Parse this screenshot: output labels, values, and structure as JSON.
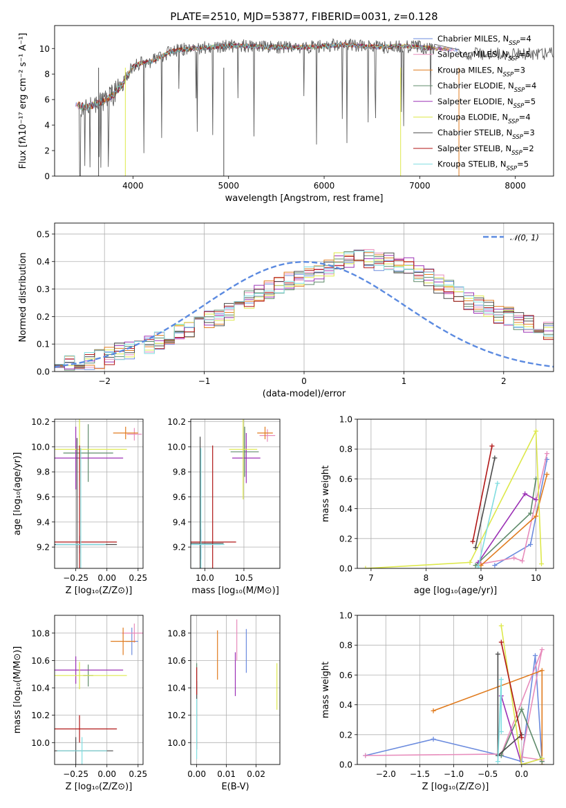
{
  "chart_data": [
    {
      "type": "line",
      "title": "PLATE=2510, MJD=53877, FIBERID=0031, z=0.128",
      "xlabel": "wavelength [Angstrom, rest frame]",
      "ylabel": "Flux [fλ10⁻¹⁷ erg cm⁻² s⁻¹ A⁻¹]",
      "xlim": [
        3180,
        8400
      ],
      "ylim": [
        0,
        11.8
      ],
      "xticks": [
        4000,
        5000,
        6000,
        7000,
        8000
      ],
      "yticks": [
        0,
        2,
        4,
        6,
        8,
        10
      ],
      "legend_position": "top-right",
      "series": [
        {
          "name": "Chabrier MILES, N_SSP=4",
          "color": "#6b8bde"
        },
        {
          "name": "Salpeter MILES, N_SSP=5",
          "color": "#e78bbb"
        },
        {
          "name": "Kroupa MILES, N_SSP=3",
          "color": "#e07b1e"
        },
        {
          "name": "Chabrier ELODIE, N_SSP=4",
          "color": "#5e8a6a"
        },
        {
          "name": "Salpeter ELODIE, N_SSP=5",
          "color": "#9b30b5"
        },
        {
          "name": "Kroupa ELODIE, N_SSP=4",
          "color": "#dde84a"
        },
        {
          "name": "Chabrier STELIB, N_SSP=3",
          "color": "#4a4a4a"
        },
        {
          "name": "Salpeter STELIB, N_SSP=2",
          "color": "#b01515"
        },
        {
          "name": "Kroupa STELIB, N_SSP=5",
          "color": "#7fdde0"
        }
      ],
      "continuum": {
        "x": [
          3400,
          3500,
          3600,
          3700,
          3800,
          3900,
          4000,
          4100,
          4200,
          4300,
          4400,
          4600,
          4800,
          5000,
          5200,
          5400,
          5600,
          5800,
          6000,
          6200,
          6400,
          6600,
          6800,
          7000,
          7200,
          7400
        ],
        "y": [
          5.6,
          5.4,
          5.6,
          5.9,
          6.4,
          7.3,
          8.6,
          8.9,
          9.0,
          9.4,
          9.8,
          10.0,
          10.1,
          10.2,
          10.2,
          10.1,
          10.1,
          10.1,
          10.2,
          10.3,
          10.2,
          10.1,
          10.2,
          10.1,
          10.0,
          9.9
        ]
      }
    },
    {
      "type": "bar",
      "xlabel": "(data-model)/error",
      "ylabel": "Normed distribution",
      "xlim": [
        -2.5,
        2.5
      ],
      "ylim": [
        0,
        0.54
      ],
      "xticks": [
        -2,
        -1,
        0,
        1,
        2
      ],
      "xtick_labels": [
        "−2",
        "−1",
        "0",
        "1",
        "2"
      ],
      "yticks": [
        0.0,
        0.1,
        0.2,
        0.3,
        0.4,
        0.5
      ],
      "ytick_labels": [
        "0.0",
        "0.1",
        "0.2",
        "0.3",
        "0.4",
        "0.5"
      ],
      "legend": "𝒩(0, 1)",
      "bins": {
        "start": -2.5,
        "width": 0.1
      },
      "normal_curve": {
        "mean": 0,
        "sigma": 1,
        "color": "#5b8ae0"
      },
      "histogram_envelope": [
        0.03,
        0.03,
        0.035,
        0.04,
        0.045,
        0.06,
        0.07,
        0.08,
        0.09,
        0.1,
        0.11,
        0.13,
        0.14,
        0.16,
        0.17,
        0.19,
        0.2,
        0.22,
        0.24,
        0.26,
        0.28,
        0.3,
        0.32,
        0.33,
        0.34,
        0.35,
        0.36,
        0.38,
        0.4,
        0.41,
        0.42,
        0.41,
        0.4,
        0.4,
        0.39,
        0.38,
        0.36,
        0.34,
        0.32,
        0.3,
        0.28,
        0.26,
        0.24,
        0.23,
        0.21,
        0.2,
        0.18,
        0.17,
        0.16,
        0.15,
        0.13,
        0.12,
        0.11,
        0.1,
        0.09,
        0.08,
        0.07,
        0.06,
        0.05,
        0.045,
        0.04,
        0.035,
        0.03,
        0.03,
        0.03,
        0.03,
        0.03,
        0.03,
        0.03,
        0.03
      ]
    },
    {
      "type": "scatter",
      "xlabel": "Z [log₁₀(Z/Z⊙)]",
      "ylabel": "age  [log₁₀(age/yr)]",
      "xlim": [
        -0.42,
        0.29
      ],
      "ylim": [
        9.03,
        10.22
      ],
      "xticks": [
        -0.25,
        0.0,
        0.25
      ],
      "xtick_labels": [
        "−0.25",
        "0.00",
        "0.25"
      ],
      "yticks": [
        9.2,
        9.4,
        9.6,
        9.8,
        10.0,
        10.2
      ],
      "ytick_labels": [
        "9.2",
        "9.4",
        "9.6",
        "9.8",
        "10.0",
        "10.2"
      ],
      "points": [
        {
          "x": -0.22,
          "y": 9.22,
          "color": "#6b8bde",
          "xerr": 0.2,
          "yerr": 0.07
        },
        {
          "x": 0.22,
          "y": 10.1,
          "color": "#e78bbb",
          "xerr": 0.06,
          "yerr": 0.05
        },
        {
          "x": 0.15,
          "y": 10.11,
          "color": "#e07b1e",
          "xerr": 0.1,
          "yerr": 0.05
        },
        {
          "x": -0.15,
          "y": 9.95,
          "color": "#5e8a6a",
          "xerr": 0.2,
          "yerr": 0.23
        },
        {
          "x": -0.25,
          "y": 9.91,
          "color": "#9b30b5",
          "xerr": 0.38,
          "yerr": 0.25
        },
        {
          "x": -0.22,
          "y": 9.98,
          "color": "#dde84a",
          "xerr": 0.38,
          "yerr": 0.25
        },
        {
          "x": -0.24,
          "y": 9.22,
          "color": "#4a4a4a",
          "xerr": 0.32,
          "yerr": 0.85
        },
        {
          "x": -0.22,
          "y": 9.24,
          "color": "#b01515",
          "xerr": 0.3,
          "yerr": 0.77
        },
        {
          "x": -0.21,
          "y": 9.22,
          "color": "#7fdde0",
          "xerr": 0.2,
          "yerr": 0.77
        }
      ]
    },
    {
      "type": "scatter",
      "xlabel": "mass [log₁₀(M/M⊙)]",
      "ylabel": "",
      "xlim": [
        9.82,
        10.96
      ],
      "ylim": [
        9.03,
        10.22
      ],
      "xticks": [
        10.0,
        10.5
      ],
      "xtick_labels": [
        "10.0",
        "10.5"
      ],
      "yticks": [
        9.2,
        9.4,
        9.6,
        9.8,
        10.0,
        10.2
      ],
      "ytick_labels": [
        "9.2",
        "9.4",
        "9.6",
        "9.8",
        "10.0",
        "10.2"
      ],
      "points": [
        {
          "x": 10.8,
          "y": 10.09,
          "color": "#e78bbb",
          "xerr": 0.1,
          "yerr": 0.05
        },
        {
          "x": 10.77,
          "y": 10.11,
          "color": "#e07b1e",
          "xerr": 0.1,
          "yerr": 0.05
        },
        {
          "x": 10.51,
          "y": 9.96,
          "color": "#5e8a6a",
          "xerr": 0.18,
          "yerr": 0.2
        },
        {
          "x": 10.53,
          "y": 9.91,
          "color": "#9b30b5",
          "xerr": 0.18,
          "yerr": 0.2
        },
        {
          "x": 10.49,
          "y": 9.98,
          "color": "#dde84a",
          "xerr": 0.18,
          "yerr": 0.4
        },
        {
          "x": 9.95,
          "y": 9.22,
          "color": "#6b8bde",
          "xerr": 0.25,
          "yerr": 0.12
        },
        {
          "x": 9.94,
          "y": 9.23,
          "color": "#4a4a4a",
          "xerr": 0.3,
          "yerr": 0.85
        },
        {
          "x": 10.1,
          "y": 9.24,
          "color": "#b01515",
          "xerr": 0.3,
          "yerr": 0.77
        },
        {
          "x": 9.95,
          "y": 9.22,
          "color": "#7fdde0",
          "xerr": 0.3,
          "yerr": 0.77
        }
      ]
    },
    {
      "type": "line",
      "xlabel": "age  [log₁₀(age/yr)]",
      "ylabel": "mass weight",
      "xlim": [
        6.75,
        10.32
      ],
      "ylim": [
        0,
        1
      ],
      "xticks": [
        7,
        8,
        9,
        10
      ],
      "xtick_labels": [
        "7",
        "8",
        "9",
        "10"
      ],
      "yticks": [
        0.0,
        0.2,
        0.4,
        0.6,
        0.8,
        1.0
      ],
      "ytick_labels": [
        "0.0",
        "0.2",
        "0.4",
        "0.6",
        "0.8",
        "1.0"
      ],
      "series": [
        {
          "name": "Chabrier MILES",
          "color": "#6b8bde",
          "x": [
            9.25,
            9.9,
            10.2
          ],
          "y": [
            0.02,
            0.16,
            0.73
          ]
        },
        {
          "name": "Salpeter MILES",
          "color": "#e78bbb",
          "x": [
            9.0,
            9.6,
            9.75,
            10.2
          ],
          "y": [
            0.03,
            0.07,
            0.05,
            0.77
          ]
        },
        {
          "name": "Kroupa MILES",
          "color": "#e07b1e",
          "x": [
            9.0,
            10.0,
            10.2
          ],
          "y": [
            0.02,
            0.35,
            0.63
          ]
        },
        {
          "name": "Chabrier ELODIE",
          "color": "#5e8a6a",
          "x": [
            8.9,
            9.9,
            10.0
          ],
          "y": [
            0.02,
            0.37,
            0.6
          ]
        },
        {
          "name": "Salpeter ELODIE",
          "color": "#9b30b5",
          "x": [
            8.95,
            9.8,
            10.0
          ],
          "y": [
            0.04,
            0.5,
            0.46
          ]
        },
        {
          "name": "Kroupa ELODIE",
          "color": "#dde84a",
          "x": [
            6.9,
            8.8,
            10.0,
            10.1
          ],
          "y": [
            0.0,
            0.04,
            0.92,
            0.03
          ]
        },
        {
          "name": "Chabrier STELIB",
          "color": "#4a4a4a",
          "x": [
            8.9,
            9.25
          ],
          "y": [
            0.14,
            0.74
          ]
        },
        {
          "name": "Salpeter STELIB",
          "color": "#b01515",
          "x": [
            8.85,
            9.2
          ],
          "y": [
            0.18,
            0.82
          ]
        },
        {
          "name": "Kroupa STELIB",
          "color": "#7fdde0",
          "x": [
            8.95,
            9.3
          ],
          "y": [
            0.01,
            0.57
          ]
        }
      ]
    },
    {
      "type": "scatter",
      "xlabel": "Z [log₁₀(Z/Z⊙)]",
      "ylabel": "mass [log₁₀(M/M⊙)]",
      "xlim": [
        -0.42,
        0.29
      ],
      "ylim": [
        9.84,
        10.93
      ],
      "xticks": [
        -0.25,
        0.0,
        0.25
      ],
      "xtick_labels": [
        "−0.25",
        "0.00",
        "0.25"
      ],
      "yticks": [
        10.0,
        10.2,
        10.4,
        10.6,
        10.8
      ],
      "ytick_labels": [
        "10.0",
        "10.2",
        "10.4",
        "10.6",
        "10.8"
      ],
      "points": [
        {
          "x": 0.2,
          "y": 10.74,
          "color": "#6b8bde",
          "xerr": 0.05,
          "yerr": 0.1
        },
        {
          "x": 0.22,
          "y": 10.8,
          "color": "#e78bbb",
          "xerr": 0.1,
          "yerr": 0.07
        },
        {
          "x": 0.13,
          "y": 10.74,
          "color": "#e07b1e",
          "xerr": 0.1,
          "yerr": 0.1
        },
        {
          "x": -0.15,
          "y": 10.49,
          "color": "#5e8a6a",
          "xerr": 0.04,
          "yerr": 0.08
        },
        {
          "x": -0.25,
          "y": 10.53,
          "color": "#9b30b5",
          "xerr": 0.38,
          "yerr": 0.1
        },
        {
          "x": -0.22,
          "y": 10.49,
          "color": "#dde84a",
          "xerr": 0.38,
          "yerr": 0.1
        },
        {
          "x": -0.25,
          "y": 9.94,
          "color": "#4a4a4a",
          "xerr": 0.3,
          "yerr": 0.1
        },
        {
          "x": -0.22,
          "y": 10.1,
          "color": "#b01515",
          "xerr": 0.3,
          "yerr": 0.1
        },
        {
          "x": -0.2,
          "y": 9.94,
          "color": "#7fdde0",
          "xerr": 0.2,
          "yerr": 0.1
        }
      ]
    },
    {
      "type": "scatter",
      "xlabel": "E(B-V)",
      "ylabel": "",
      "xlim": [
        -0.002,
        0.028
      ],
      "ylim": [
        9.84,
        10.93
      ],
      "xticks": [
        0.0,
        0.01,
        0.02
      ],
      "xtick_labels": [
        "0.00",
        "0.01",
        "0.02"
      ],
      "yticks": [
        10.0,
        10.2,
        10.4,
        10.6,
        10.8
      ],
      "ytick_labels": [
        "10.0",
        "10.2",
        "10.4",
        "10.6",
        "10.8"
      ],
      "points": [
        {
          "x": 0.0167,
          "y": 10.67,
          "color": "#6b8bde",
          "yerr": 0.16
        },
        {
          "x": 0.0135,
          "y": 10.75,
          "color": "#e78bbb",
          "yerr": 0.15
        },
        {
          "x": 0.007,
          "y": 10.64,
          "color": "#e07b1e",
          "yerr": 0.18
        },
        {
          "x": 0.0,
          "y": 10.45,
          "color": "#5e8a6a",
          "yerr": 0.13
        },
        {
          "x": 0.013,
          "y": 10.5,
          "color": "#9b30b5",
          "yerr": 0.16
        },
        {
          "x": 0.027,
          "y": 10.41,
          "color": "#dde84a",
          "yerr": 0.17
        },
        {
          "x": 0.0,
          "y": 10.2,
          "color": "#4a4a4a",
          "yerr": 0.25
        },
        {
          "x": 0.0,
          "y": 10.45,
          "color": "#b01515",
          "yerr": 0.1
        },
        {
          "x": 0.0,
          "y": 10.1,
          "color": "#7fdde0",
          "yerr": 0.22
        }
      ]
    },
    {
      "type": "line",
      "xlabel": "Z [log₁₀(Z/Z⊙)]",
      "ylabel": "mass weight",
      "xlim": [
        -2.42,
        0.47
      ],
      "ylim": [
        0,
        1
      ],
      "xticks": [
        -2.0,
        -1.5,
        -1.0,
        -0.5,
        0.0
      ],
      "xtick_labels": [
        "−2.0",
        "−1.5",
        "−1.0",
        "−0.5",
        "0.0"
      ],
      "yticks": [
        0.0,
        0.2,
        0.4,
        0.6,
        0.8,
        1.0
      ],
      "ytick_labels": [
        "0.0",
        "0.2",
        "0.4",
        "0.6",
        "0.8",
        "1.0"
      ],
      "series": [
        {
          "name": "Chabrier MILES",
          "color": "#6b8bde",
          "x": [
            -2.3,
            -1.3,
            -0.3,
            0.0,
            0.2,
            0.3
          ],
          "y": [
            0.06,
            0.17,
            0.06,
            0.02,
            0.73,
            0.02
          ]
        },
        {
          "name": "Salpeter MILES",
          "color": "#e78bbb",
          "x": [
            -2.3,
            -0.3,
            0.3,
            0.0,
            0.3
          ],
          "y": [
            0.06,
            0.07,
            0.77,
            0.05,
            0.03
          ]
        },
        {
          "name": "Kroupa MILES",
          "color": "#e07b1e",
          "x": [
            -1.3,
            0.3,
            0.3
          ],
          "y": [
            0.36,
            0.63,
            0.0
          ]
        },
        {
          "name": "Chabrier ELODIE",
          "color": "#5e8a6a",
          "x": [
            -0.3,
            0.0,
            0.3
          ],
          "y": [
            0.06,
            0.37,
            0.02
          ]
        },
        {
          "name": "Salpeter ELODIE",
          "color": "#9b30b5",
          "x": [
            -0.3,
            0.0,
            0.3
          ],
          "y": [
            0.46,
            0.0,
            0.04
          ]
        },
        {
          "name": "Kroupa ELODIE",
          "color": "#dde84a",
          "x": [
            -0.3,
            0.0,
            0.3
          ],
          "y": [
            0.93,
            0.0,
            0.04
          ]
        },
        {
          "name": "Chabrier STELIB",
          "color": "#4a4a4a",
          "x": [
            -0.35,
            -0.35,
            0.0
          ],
          "y": [
            0.74,
            0.06,
            0.2
          ]
        },
        {
          "name": "Salpeter STELIB",
          "color": "#b01515",
          "x": [
            -0.3,
            0.0
          ],
          "y": [
            0.82,
            0.18
          ]
        },
        {
          "name": "Kroupa STELIB",
          "color": "#7fdde0",
          "x": [
            -0.35,
            -0.3,
            -0.3
          ],
          "y": [
            0.02,
            0.57,
            0.22
          ]
        }
      ]
    }
  ]
}
